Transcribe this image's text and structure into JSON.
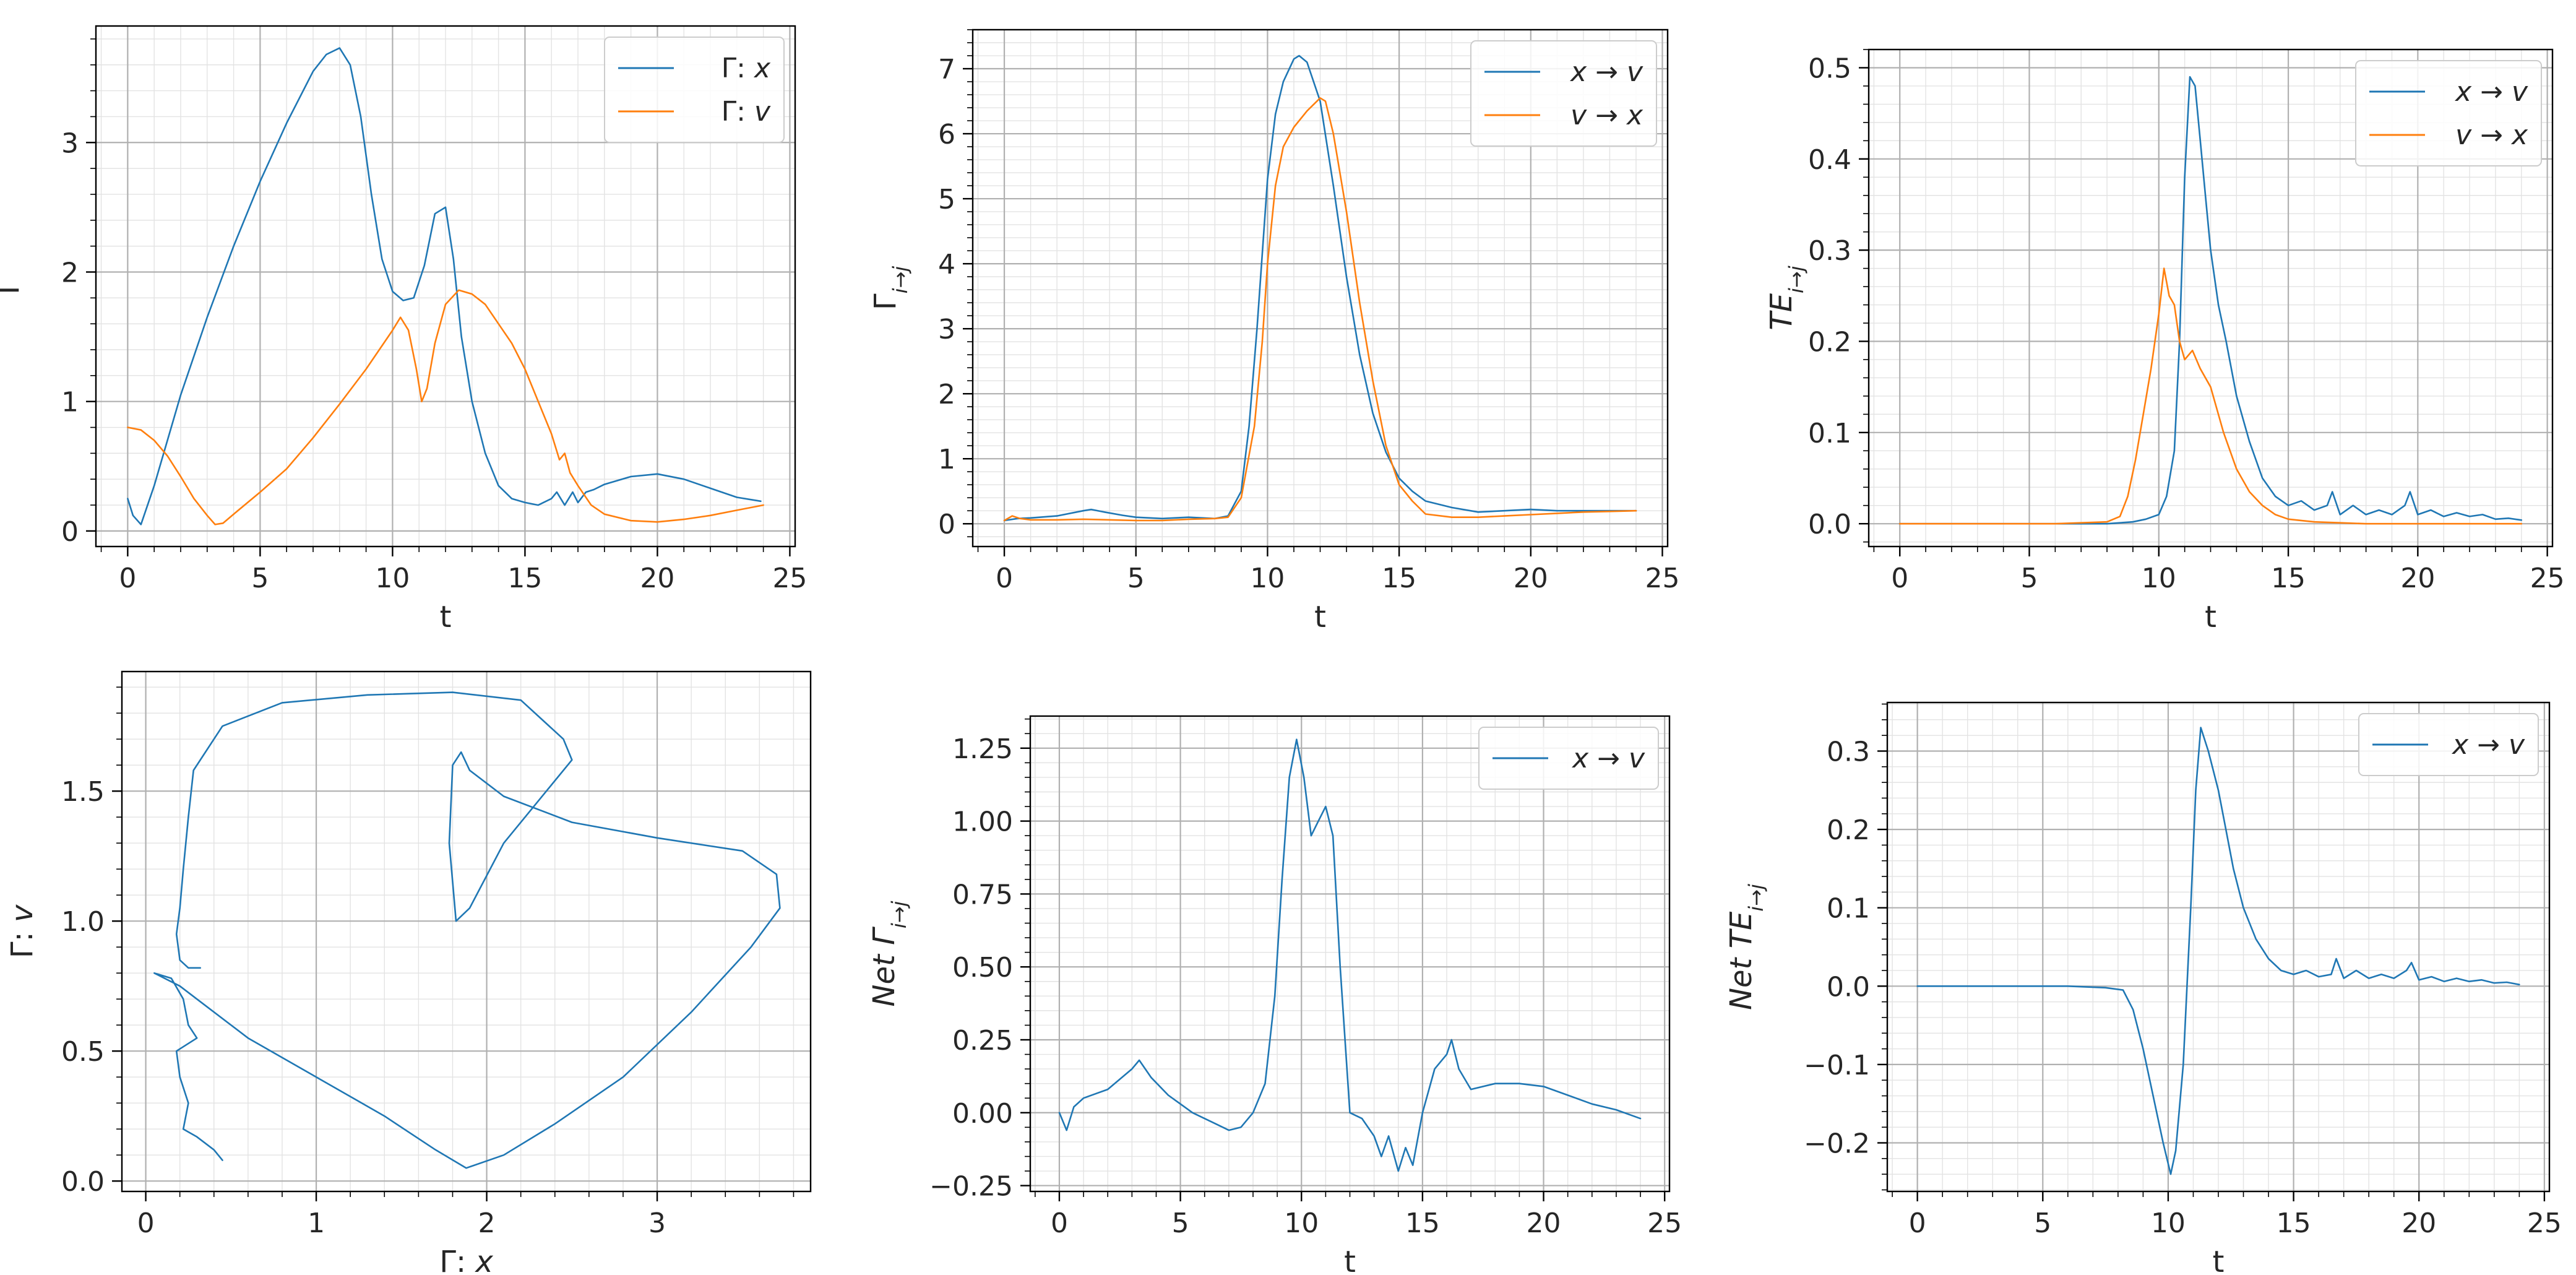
{
  "colors": {
    "blue": "#1f77b4",
    "orange": "#ff7f0e"
  },
  "chart_data": [
    {
      "type": "line",
      "xlabel": "t",
      "ylabel": "Γ",
      "xlim": [
        -1.2,
        25.2
      ],
      "ylim": [
        -0.12,
        3.9
      ],
      "xticks": [
        0,
        5,
        10,
        15,
        20,
        25
      ],
      "yticks": [
        0,
        1,
        2,
        3
      ],
      "ytick_labels": [
        "0",
        "1",
        "2",
        "3"
      ],
      "grid": true,
      "legend": "top-right",
      "series": [
        {
          "name": "Γ: x",
          "color": "#1f77b4",
          "x": [
            0,
            0.2,
            0.5,
            1,
            2,
            3,
            4,
            5,
            6,
            7,
            7.5,
            8,
            8.4,
            8.8,
            9.2,
            9.6,
            10,
            10.4,
            10.8,
            11.2,
            11.6,
            12,
            12.3,
            12.6,
            13,
            13.5,
            14,
            14.5,
            15,
            15.5,
            16,
            16.2,
            16.5,
            16.8,
            17,
            17.3,
            17.6,
            18,
            19,
            20,
            21,
            22,
            23,
            23.9
          ],
          "y": [
            0.25,
            0.12,
            0.05,
            0.35,
            1.05,
            1.65,
            2.2,
            2.7,
            3.15,
            3.55,
            3.68,
            3.73,
            3.6,
            3.2,
            2.6,
            2.1,
            1.85,
            1.78,
            1.8,
            2.05,
            2.45,
            2.5,
            2.1,
            1.5,
            1.0,
            0.6,
            0.35,
            0.25,
            0.22,
            0.2,
            0.25,
            0.3,
            0.2,
            0.3,
            0.22,
            0.3,
            0.32,
            0.36,
            0.42,
            0.44,
            0.4,
            0.33,
            0.26,
            0.23
          ]
        },
        {
          "name": "Γ: v",
          "color": "#ff7f0e",
          "x": [
            0,
            0.5,
            1,
            1.5,
            2,
            2.5,
            3,
            3.3,
            3.6,
            4,
            5,
            6,
            7,
            8,
            9,
            10,
            10.3,
            10.6,
            10.9,
            11.1,
            11.3,
            11.6,
            12,
            12.5,
            13,
            13.5,
            14,
            14.5,
            15,
            15.5,
            16,
            16.3,
            16.5,
            16.7,
            17,
            17.5,
            18,
            19,
            20,
            21,
            22,
            23,
            24
          ],
          "y": [
            0.8,
            0.78,
            0.7,
            0.58,
            0.42,
            0.25,
            0.12,
            0.05,
            0.06,
            0.13,
            0.3,
            0.48,
            0.72,
            0.98,
            1.25,
            1.55,
            1.65,
            1.55,
            1.25,
            1.0,
            1.1,
            1.45,
            1.75,
            1.86,
            1.83,
            1.75,
            1.6,
            1.45,
            1.25,
            1.0,
            0.75,
            0.55,
            0.6,
            0.45,
            0.35,
            0.2,
            0.13,
            0.08,
            0.07,
            0.09,
            0.12,
            0.16,
            0.2
          ]
        }
      ]
    },
    {
      "type": "line",
      "xlabel": "t",
      "ylabel": "Γi→j",
      "xlim": [
        -1.2,
        25.2
      ],
      "ylim": [
        -0.35,
        7.6
      ],
      "xticks": [
        0,
        5,
        10,
        15,
        20,
        25
      ],
      "yticks": [
        0,
        1,
        2,
        3,
        4,
        5,
        6,
        7
      ],
      "ytick_labels": [
        "0",
        "1",
        "2",
        "3",
        "4",
        "5",
        "6",
        "7"
      ],
      "grid": true,
      "legend": "top-right",
      "series": [
        {
          "name": "x → v",
          "color": "#1f77b4",
          "x": [
            0,
            0.5,
            1,
            2,
            3,
            3.3,
            3.8,
            4.5,
            5,
            6,
            7,
            8,
            8.5,
            9,
            9.3,
            9.6,
            10,
            10.3,
            10.6,
            11,
            11.2,
            11.5,
            12,
            12.5,
            13,
            13.5,
            14,
            14.5,
            15,
            15.5,
            16,
            17,
            18,
            19,
            20,
            21,
            22,
            23,
            24
          ],
          "y": [
            0.05,
            0.08,
            0.09,
            0.12,
            0.2,
            0.22,
            0.18,
            0.13,
            0.1,
            0.08,
            0.1,
            0.08,
            0.12,
            0.5,
            1.5,
            3.0,
            5.3,
            6.3,
            6.8,
            7.15,
            7.2,
            7.1,
            6.5,
            5.2,
            3.8,
            2.6,
            1.7,
            1.1,
            0.7,
            0.5,
            0.35,
            0.25,
            0.18,
            0.2,
            0.22,
            0.2,
            0.2,
            0.2,
            0.2
          ]
        },
        {
          "name": "v → x",
          "color": "#ff7f0e",
          "x": [
            0,
            0.3,
            0.6,
            1,
            2,
            3,
            4,
            5,
            6,
            7,
            8,
            8.5,
            9,
            9.5,
            9.8,
            10,
            10.3,
            10.6,
            11,
            11.5,
            12,
            12.2,
            12.5,
            13,
            13.5,
            14,
            14.5,
            15,
            15.5,
            16,
            17,
            18,
            19,
            20,
            21,
            22,
            23,
            24
          ],
          "y": [
            0.05,
            0.12,
            0.08,
            0.06,
            0.06,
            0.07,
            0.06,
            0.05,
            0.05,
            0.07,
            0.08,
            0.1,
            0.4,
            1.5,
            2.8,
            4.0,
            5.2,
            5.8,
            6.1,
            6.35,
            6.55,
            6.5,
            6.0,
            4.8,
            3.4,
            2.2,
            1.2,
            0.6,
            0.35,
            0.15,
            0.1,
            0.1,
            0.12,
            0.14,
            0.16,
            0.18,
            0.19,
            0.2
          ]
        }
      ]
    },
    {
      "type": "line",
      "xlabel": "t",
      "ylabel": "TEi→j",
      "xlim": [
        -1.2,
        25.2
      ],
      "ylim": [
        -0.025,
        0.52
      ],
      "xticks": [
        0,
        5,
        10,
        15,
        20,
        25
      ],
      "yticks": [
        0,
        0.1,
        0.2,
        0.3,
        0.4,
        0.5
      ],
      "ytick_labels": [
        "0.0",
        "0.1",
        "0.2",
        "0.3",
        "0.4",
        "0.5"
      ],
      "grid": true,
      "legend": "top-right",
      "series": [
        {
          "name": "x → v",
          "color": "#1f77b4",
          "x": [
            0,
            2,
            4,
            6,
            8,
            9,
            9.5,
            10,
            10.3,
            10.6,
            10.8,
            11,
            11.2,
            11.4,
            11.6,
            11.8,
            12,
            12.3,
            12.6,
            13,
            13.5,
            14,
            14.5,
            15,
            15.5,
            16,
            16.5,
            16.7,
            17,
            17.5,
            18,
            18.5,
            19,
            19.5,
            19.7,
            20,
            20.5,
            21,
            21.5,
            22,
            22.5,
            23,
            23.5,
            24
          ],
          "y": [
            0,
            0,
            0,
            0,
            0,
            0.002,
            0.005,
            0.01,
            0.03,
            0.08,
            0.2,
            0.38,
            0.49,
            0.48,
            0.42,
            0.36,
            0.3,
            0.24,
            0.2,
            0.14,
            0.09,
            0.05,
            0.03,
            0.02,
            0.025,
            0.015,
            0.02,
            0.035,
            0.01,
            0.02,
            0.01,
            0.015,
            0.01,
            0.02,
            0.035,
            0.01,
            0.015,
            0.008,
            0.012,
            0.008,
            0.01,
            0.005,
            0.006,
            0.004
          ]
        },
        {
          "name": "v → x",
          "color": "#ff7f0e",
          "x": [
            0,
            2,
            4,
            6,
            8,
            8.5,
            8.8,
            9.1,
            9.4,
            9.7,
            10,
            10.2,
            10.4,
            10.6,
            10.8,
            11,
            11.3,
            11.6,
            12,
            12.5,
            13,
            13.5,
            14,
            14.5,
            15,
            16,
            17,
            18,
            20,
            22,
            24
          ],
          "y": [
            0,
            0,
            0,
            0,
            0.002,
            0.008,
            0.03,
            0.07,
            0.12,
            0.17,
            0.23,
            0.28,
            0.25,
            0.24,
            0.2,
            0.18,
            0.19,
            0.17,
            0.15,
            0.1,
            0.06,
            0.035,
            0.02,
            0.01,
            0.005,
            0.002,
            0.001,
            0,
            0,
            0,
            0
          ]
        }
      ]
    },
    {
      "type": "line",
      "xlabel": "Γ: x",
      "ylabel": "Γ: v",
      "xlim": [
        -0.14,
        3.9
      ],
      "ylim": [
        -0.04,
        1.96
      ],
      "xticks": [
        0,
        1,
        2,
        3
      ],
      "xtick_labels": [
        "0",
        "1",
        "2",
        "3"
      ],
      "yticks": [
        0,
        0.5,
        1,
        1.5
      ],
      "ytick_labels": [
        "0.0",
        "0.5",
        "1.0",
        "1.5"
      ],
      "grid": true,
      "legend": "none",
      "series": [
        {
          "color": "#1f77b4",
          "x": [
            0.45,
            0.4,
            0.3,
            0.22,
            0.25,
            0.2,
            0.18,
            0.3,
            0.25,
            0.22,
            0.15,
            0.05,
            0.2,
            0.3,
            0.6,
            1.0,
            1.4,
            1.7,
            1.88,
            2.1,
            2.4,
            2.8,
            3.2,
            3.55,
            3.72,
            3.7,
            3.5,
            3.0,
            2.5,
            2.1,
            1.9,
            1.85,
            1.8,
            1.78,
            1.82,
            1.9,
            2.1,
            2.5,
            2.45,
            2.2,
            1.8,
            1.3,
            0.8,
            0.45,
            0.28,
            0.25,
            0.22,
            0.2,
            0.18,
            0.2,
            0.25,
            0.32
          ],
          "y": [
            0.08,
            0.12,
            0.17,
            0.2,
            0.3,
            0.4,
            0.5,
            0.55,
            0.6,
            0.7,
            0.78,
            0.8,
            0.75,
            0.7,
            0.55,
            0.4,
            0.25,
            0.12,
            0.05,
            0.1,
            0.22,
            0.4,
            0.65,
            0.9,
            1.05,
            1.18,
            1.27,
            1.32,
            1.38,
            1.48,
            1.58,
            1.65,
            1.6,
            1.3,
            1.0,
            1.05,
            1.3,
            1.62,
            1.7,
            1.85,
            1.88,
            1.87,
            1.84,
            1.75,
            1.58,
            1.4,
            1.2,
            1.05,
            0.95,
            0.85,
            0.82,
            0.82
          ]
        }
      ]
    },
    {
      "type": "line",
      "xlabel": "t",
      "ylabel": "Net Γi→j",
      "xlim": [
        -1.2,
        25.2
      ],
      "ylim": [
        -0.27,
        1.36
      ],
      "xticks": [
        0,
        5,
        10,
        15,
        20,
        25
      ],
      "yticks": [
        -0.25,
        0,
        0.25,
        0.5,
        0.75,
        1,
        1.25
      ],
      "ytick_labels": [
        "−0.25",
        "0.00",
        "0.25",
        "0.50",
        "0.75",
        "1.00",
        "1.25"
      ],
      "grid": true,
      "legend": "top-right",
      "series": [
        {
          "name": "x → v",
          "color": "#1f77b4",
          "x": [
            0,
            0.3,
            0.6,
            1,
            2,
            3,
            3.3,
            3.8,
            4.5,
            5.5,
            6.5,
            7,
            7.5,
            8,
            8.5,
            8.9,
            9.2,
            9.5,
            9.8,
            10.1,
            10.4,
            10.7,
            11,
            11.3,
            11.6,
            12,
            12.5,
            13,
            13.3,
            13.6,
            14,
            14.3,
            14.6,
            15,
            15.5,
            16,
            16.2,
            16.5,
            17,
            18,
            19,
            20,
            21,
            22,
            23,
            24
          ],
          "y": [
            0,
            -0.06,
            0.02,
            0.05,
            0.08,
            0.15,
            0.18,
            0.12,
            0.06,
            0.0,
            -0.04,
            -0.06,
            -0.05,
            0.0,
            0.1,
            0.4,
            0.8,
            1.15,
            1.28,
            1.15,
            0.95,
            1.0,
            1.05,
            0.95,
            0.5,
            0.0,
            -0.02,
            -0.08,
            -0.15,
            -0.08,
            -0.2,
            -0.12,
            -0.18,
            0.0,
            0.15,
            0.2,
            0.25,
            0.15,
            0.08,
            0.1,
            0.1,
            0.09,
            0.06,
            0.03,
            0.01,
            -0.02
          ]
        }
      ]
    },
    {
      "type": "line",
      "xlabel": "t",
      "ylabel": "Net TEi→j",
      "xlim": [
        -1.2,
        25.2
      ],
      "ylim": [
        -0.262,
        0.362
      ],
      "xticks": [
        0,
        5,
        10,
        15,
        20,
        25
      ],
      "yticks": [
        -0.2,
        -0.1,
        0,
        0.1,
        0.2,
        0.3
      ],
      "ytick_labels": [
        "−0.2",
        "−0.1",
        "0.0",
        "0.1",
        "0.2",
        "0.3"
      ],
      "grid": true,
      "legend": "top-right",
      "series": [
        {
          "name": "x → v",
          "color": "#1f77b4",
          "x": [
            0,
            2,
            4,
            6,
            7.5,
            8.2,
            8.6,
            9,
            9.4,
            9.8,
            10.1,
            10.3,
            10.6,
            10.9,
            11.1,
            11.3,
            11.6,
            12,
            12.3,
            12.6,
            13,
            13.5,
            14,
            14.5,
            15,
            15.5,
            16,
            16.5,
            16.7,
            17,
            17.5,
            18,
            18.5,
            19,
            19.5,
            19.7,
            20,
            20.5,
            21,
            21.5,
            22,
            22.5,
            23,
            23.5,
            24
          ],
          "y": [
            0,
            0,
            0,
            0,
            -0.002,
            -0.005,
            -0.03,
            -0.08,
            -0.14,
            -0.2,
            -0.24,
            -0.21,
            -0.1,
            0.1,
            0.25,
            0.33,
            0.3,
            0.25,
            0.2,
            0.15,
            0.1,
            0.06,
            0.035,
            0.02,
            0.015,
            0.02,
            0.012,
            0.015,
            0.035,
            0.01,
            0.02,
            0.01,
            0.015,
            0.01,
            0.02,
            0.03,
            0.008,
            0.012,
            0.006,
            0.01,
            0.006,
            0.008,
            0.004,
            0.005,
            0.002
          ]
        }
      ]
    }
  ]
}
